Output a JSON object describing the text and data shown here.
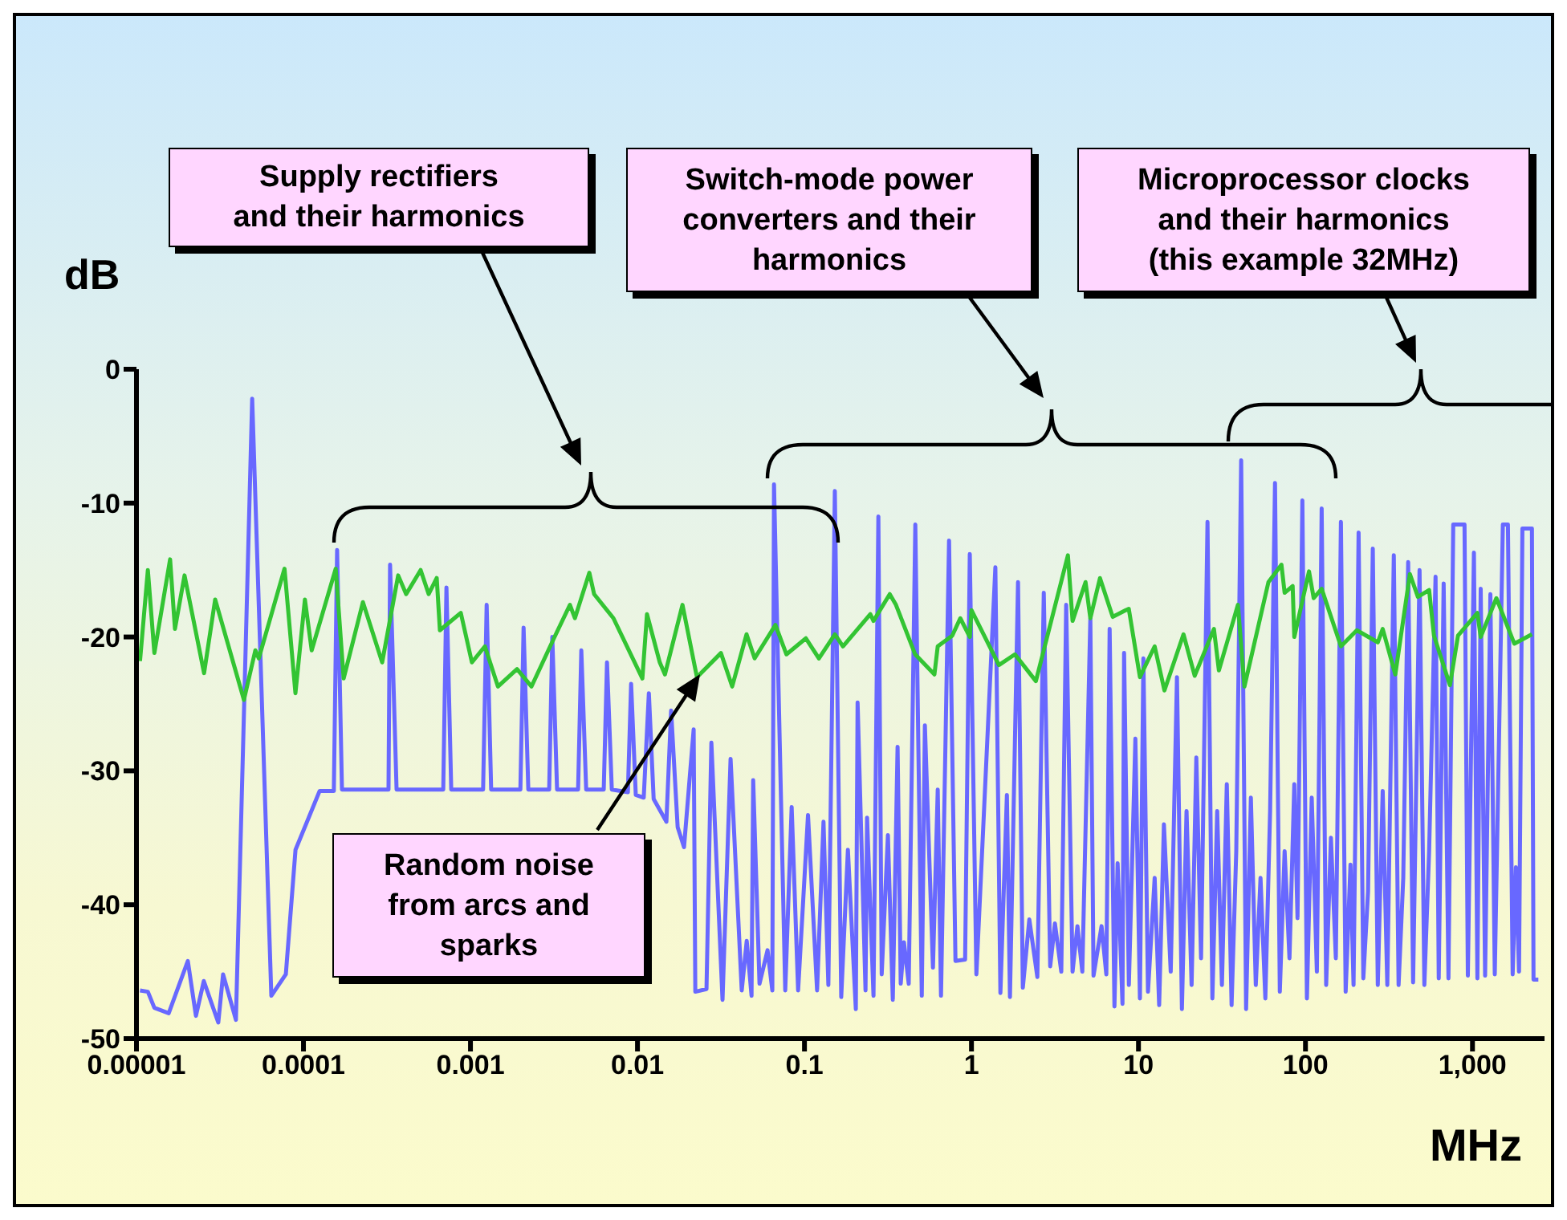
{
  "chart_data": {
    "type": "line",
    "xlabel": "MHz",
    "ylabel": "dB",
    "log": "x",
    "annotations": [
      "Supply rectifiers and their harmonics",
      "Switch-mode power converters and their harmonics",
      "Microprocessor clocks and their harmonics (this example 32MHz)",
      "Random noise from arcs and sparks"
    ],
    "xlim": [
      1e-05,
      2700
    ],
    "xticks": [
      {
        "value": 1e-05,
        "label": "0.00001"
      },
      {
        "value": 0.0001,
        "label": "0.0001"
      },
      {
        "value": 0.001,
        "label": "0.001"
      },
      {
        "value": 0.01,
        "label": "0.01"
      },
      {
        "value": 0.1,
        "label": "0.1"
      },
      {
        "value": 1,
        "label": "1"
      },
      {
        "value": 10,
        "label": "10"
      },
      {
        "value": 100,
        "label": "100"
      },
      {
        "value": 1000,
        "label": "1,000"
      }
    ],
    "ylim": [
      -50,
      0
    ],
    "yticks": [
      -50,
      -40,
      -30,
      -20,
      -10,
      0
    ],
    "series": [
      {
        "color": "#6868ff",
        "x": [
          1.05e-05,
          1.17e-05,
          1.28e-05,
          1.56e-05,
          2.03e-05,
          2.27e-05,
          2.53e-05,
          3.09e-05,
          3.3e-05,
          3.94e-05,
          4.93e-05,
          6.42e-05,
          7.84e-05,
          8.96e-05,
          0.000125,
          0.000152,
          0.000159,
          0.00017,
          0.000323,
          0.00033,
          0.000361,
          0.000687,
          0.000718,
          0.000767,
          0.00119,
          0.00125,
          0.00133,
          0.00199,
          0.00208,
          0.00222,
          0.00296,
          0.00309,
          0.0033,
          0.00441,
          0.00461,
          0.00493,
          0.00628,
          0.00657,
          0.00702,
          0.00876,
          0.00916,
          0.00977,
          0.0109,
          0.0117,
          0.0125,
          0.0149,
          0.0159,
          0.0174,
          0.019,
          0.0217,
          0.0222,
          0.0259,
          0.0277,
          0.0323,
          0.0361,
          0.0421,
          0.0451,
          0.0482,
          0.0493,
          0.0538,
          0.0601,
          0.0642,
          0.0657,
          0.0767,
          0.0838,
          0.0916,
          0.105,
          0.119,
          0.13,
          0.139,
          0.152,
          0.166,
          0.182,
          0.203,
          0.208,
          0.232,
          0.237,
          0.259,
          0.277,
          0.29,
          0.316,
          0.338,
          0.361,
          0.377,
          0.394,
          0.421,
          0.461,
          0.504,
          0.526,
          0.588,
          0.628,
          0.657,
          0.734,
          0.802,
          0.916,
          0.977,
          1.07,
          1.39,
          1.49,
          1.63,
          1.7,
          1.9,
          2.03,
          2.22,
          2.48,
          2.71,
          2.96,
          3.16,
          3.45,
          3.69,
          4.03,
          4.31,
          4.61,
          5.15,
          5.38,
          6.01,
          6.42,
          6.72,
          7.18,
          7.5,
          8.02,
          8.2,
          8.76,
          9.58,
          10.2,
          10.7,
          11.4,
          12.5,
          13.3,
          14.2,
          15.6,
          17,
          18.2,
          19.4,
          20.8,
          22.2,
          23.7,
          25.9,
          27.7,
          29.6,
          31.6,
          33.8,
          36.1,
          38.5,
          41.2,
          44.1,
          47.1,
          50.4,
          53.8,
          57.5,
          61.4,
          65.7,
          70.2,
          75,
          80.2,
          85.7,
          89.6,
          95.8,
          102,
          109,
          117,
          125,
          133,
          142,
          152,
          163,
          174,
          186,
          194,
          208,
          222,
          237,
          253,
          271,
          290,
          309,
          338,
          361,
          385,
          412,
          441,
          482,
          515,
          550,
          601,
          628,
          672,
          718,
          767,
          896,
          938,
          1020,
          1070,
          1120,
          1190,
          1280,
          1360,
          1520,
          1630,
          1740,
          1820,
          1900,
          1990,
          2270,
          2320,
          2480
        ],
        "values": [
          -46.4,
          -46.5,
          -47.7,
          -48.1,
          -44.2,
          -48.3,
          -45.7,
          -48.8,
          -45.2,
          -48.6,
          -2.2,
          -46.8,
          -45.2,
          -35.9,
          -31.5,
          -31.5,
          -13.5,
          -31.4,
          -31.4,
          -14.6,
          -31.4,
          -31.4,
          -16.3,
          -31.4,
          -31.4,
          -17.6,
          -31.4,
          -31.4,
          -19.3,
          -31.4,
          -31.4,
          -20,
          -31.4,
          -31.4,
          -21,
          -31.4,
          -31.4,
          -21.9,
          -31.4,
          -31.6,
          -23.5,
          -31.8,
          -32,
          -24.2,
          -32.1,
          -33.8,
          -25.5,
          -34.2,
          -35.7,
          -26.9,
          -46.5,
          -46.3,
          -27.9,
          -47.1,
          -29.1,
          -46.4,
          -42.7,
          -46.8,
          -30.7,
          -45.9,
          -43.4,
          -46.4,
          -8.6,
          -46.4,
          -32.7,
          -46.4,
          -33.3,
          -46.4,
          -33.8,
          -46,
          -9.1,
          -46.9,
          -35.9,
          -47.8,
          -24.9,
          -46.4,
          -33.5,
          -46.8,
          -11,
          -45.2,
          -34.8,
          -47.1,
          -28.2,
          -45.9,
          -42.8,
          -45.9,
          -11.6,
          -46.8,
          -26.6,
          -44.7,
          -31.4,
          -46.8,
          -12.8,
          -44.2,
          -44.1,
          -13.8,
          -45.2,
          -14.8,
          -46.6,
          -31.8,
          -46.9,
          -15.9,
          -46.2,
          -41.1,
          -45.4,
          -16.7,
          -44.6,
          -41.4,
          -45,
          -17.6,
          -45,
          -41.6,
          -45,
          -18.6,
          -45.3,
          -41.6,
          -45.2,
          -19.4,
          -47.6,
          -36.9,
          -47.4,
          -21.2,
          -46,
          -27.6,
          -47,
          -21.6,
          -46.5,
          -38,
          -47.5,
          -34,
          -45,
          -23,
          -47.8,
          -33,
          -46,
          -29,
          -44,
          -11.4,
          -47,
          -33,
          -46,
          -31,
          -47.5,
          -36,
          -6.8,
          -47.8,
          -32,
          -46,
          -38,
          -47,
          -33,
          -8.5,
          -46.5,
          -36,
          -44,
          -31,
          -41,
          -9.8,
          -47,
          -32,
          -45,
          -10.4,
          -46,
          -35,
          -44,
          -11.4,
          -46.5,
          -37,
          -46,
          -12.2,
          -45.5,
          -39,
          -13.4,
          -46,
          -31.5,
          -46,
          -13.9,
          -46,
          -38,
          -14.4,
          -45.8,
          -15,
          -46,
          -36,
          -15.5,
          -45.5,
          -16,
          -45.5,
          -11.6,
          -11.6,
          -45.3,
          -13.7,
          -45.5,
          -16.4,
          -45.3,
          -16.8,
          -45.2,
          -11.6,
          -11.6,
          -45.2,
          -37.2,
          -45,
          -11.9,
          -11.9,
          -45.6,
          -45.6
        ]
      },
      {
        "color": "#33c433",
        "x": [
          1.05e-05,
          1.17e-05,
          1.28e-05,
          1.59e-05,
          1.7e-05,
          1.94e-05,
          2.54e-05,
          2.96e-05,
          4.4e-05,
          5.15e-05,
          5.4e-05,
          7.7e-05,
          8.95e-05,
          0.000102,
          0.000112,
          0.000156,
          0.000174,
          0.000227,
          0.000296,
          0.000369,
          0.000412,
          0.000503,
          0.000562,
          0.000628,
          0.000656,
          0.000875,
          0.00102,
          0.00122,
          0.00146,
          0.0019,
          0.00232,
          0.00316,
          0.00394,
          0.00422,
          0.00515,
          0.0055,
          0.00718,
          0.0107,
          0.0114,
          0.0136,
          0.0146,
          0.0186,
          0.0227,
          0.0316,
          0.0369,
          0.045,
          0.0503,
          0.067,
          0.078,
          0.102,
          0.122,
          0.152,
          0.17,
          0.248,
          0.259,
          0.324,
          0.353,
          0.46,
          0.6,
          0.628,
          0.767,
          0.857,
          0.977,
          1,
          1.46,
          1.82,
          2.43,
          3.78,
          4.03,
          4.82,
          5.15,
          5.88,
          7.01,
          8.38,
          8.75,
          10.2,
          12.5,
          14.3,
          18.6,
          21.7,
          28.3,
          30.3,
          39.4,
          43.1,
          60,
          71.8,
          75,
          83.8,
          85.7,
          105,
          112,
          125,
          163,
          203,
          271,
          290,
          345,
          422,
          471,
          550,
          588,
          733,
          819,
          1070,
          1120,
          1390,
          1780,
          2270
        ],
        "values": [
          -21.8,
          -15,
          -21.2,
          -14.2,
          -19.4,
          -15.4,
          -22.7,
          -17.2,
          -24.7,
          -21,
          -21.6,
          -14.9,
          -24.2,
          -17.2,
          -21,
          -14.9,
          -23.1,
          -17.4,
          -21.9,
          -15.4,
          -16.8,
          -15,
          -16.8,
          -15.6,
          -19.5,
          -18.2,
          -21.9,
          -20.7,
          -23.7,
          -22.4,
          -23.7,
          -20.1,
          -17.6,
          -18.6,
          -15.2,
          -16.8,
          -18.6,
          -23.1,
          -18.3,
          -21.9,
          -22.8,
          -17.6,
          -23,
          -21.2,
          -23.7,
          -19.8,
          -21.6,
          -19.1,
          -21.3,
          -20.1,
          -21.6,
          -19.8,
          -20.7,
          -18.3,
          -18.8,
          -16.8,
          -17.6,
          -21.3,
          -22.8,
          -20.7,
          -19.9,
          -18.6,
          -20,
          -18,
          -22.1,
          -21.3,
          -23.3,
          -13.9,
          -18.8,
          -15.9,
          -18.6,
          -15.6,
          -18.5,
          -18,
          -17.9,
          -23,
          -20.7,
          -24,
          -19.8,
          -22.9,
          -19.4,
          -22.5,
          -17.6,
          -23.7,
          -15.9,
          -14.6,
          -16.7,
          -16.2,
          -20,
          -15.1,
          -17.1,
          -16.4,
          -20.7,
          -19.5,
          -20.4,
          -19.4,
          -22.8,
          -15.3,
          -17,
          -16.5,
          -19.9,
          -23.6,
          -19.9,
          -18.2,
          -20,
          -17.1,
          -20.5,
          -19.8
        ]
      }
    ]
  }
}
